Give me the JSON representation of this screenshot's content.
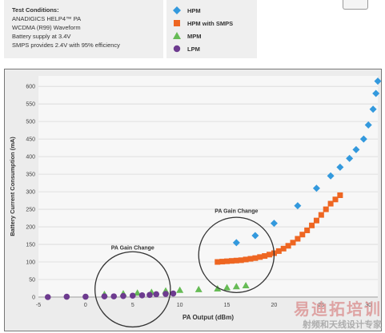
{
  "test_conditions": {
    "title": "Test Conditions:",
    "lines": [
      "ANADIGICS HELP4™ PA",
      "WCDMA (R99) Waveform",
      "Battery supply at 3.4V",
      "SMPS provides 2.4V with 95% efficiency"
    ]
  },
  "watermark": {
    "big": "易迪拓培训",
    "small": "射频和天线设计专家"
  },
  "chart_data": {
    "type": "scatter",
    "xlabel": "PA Output (dBm)",
    "ylabel": "Battery Current Consumption (mA)",
    "xlim": [
      -5,
      31
    ],
    "ylim": [
      0,
      630
    ],
    "x_ticks": [
      -5,
      0,
      5,
      10,
      15,
      20,
      25,
      30
    ],
    "y_ticks": [
      0,
      50,
      100,
      150,
      200,
      250,
      300,
      350,
      400,
      450,
      500,
      550,
      600
    ],
    "grid": "horizontal",
    "legend_position": "top",
    "series": [
      {
        "name": "HPM",
        "color": "#3399dd",
        "marker": "diamond",
        "points": [
          [
            16,
            155
          ],
          [
            18,
            175
          ],
          [
            20,
            210
          ],
          [
            22.5,
            260
          ],
          [
            24.5,
            310
          ],
          [
            26,
            345
          ],
          [
            27,
            370
          ],
          [
            28,
            395
          ],
          [
            28.7,
            420
          ],
          [
            29.5,
            450
          ],
          [
            30,
            490
          ],
          [
            30.5,
            535
          ],
          [
            30.8,
            580
          ],
          [
            31,
            615
          ]
        ]
      },
      {
        "name": "HPM with SMPS",
        "color": "#ee6622",
        "marker": "square",
        "points": [
          [
            14,
            100
          ],
          [
            14.5,
            101
          ],
          [
            15,
            102
          ],
          [
            15.5,
            103
          ],
          [
            16,
            104
          ],
          [
            16.5,
            105
          ],
          [
            17,
            107
          ],
          [
            17.5,
            109
          ],
          [
            18,
            111
          ],
          [
            18.5,
            114
          ],
          [
            19,
            117
          ],
          [
            19.5,
            121
          ],
          [
            20,
            125
          ],
          [
            20.5,
            131
          ],
          [
            21,
            138
          ],
          [
            21.5,
            146
          ],
          [
            22,
            155
          ],
          [
            22.5,
            166
          ],
          [
            23,
            178
          ],
          [
            23.5,
            190
          ],
          [
            24,
            204
          ],
          [
            24.5,
            218
          ],
          [
            25,
            234
          ],
          [
            25.5,
            250
          ],
          [
            26,
            266
          ],
          [
            26.5,
            278
          ],
          [
            27,
            290
          ]
        ]
      },
      {
        "name": "MPM",
        "color": "#66bb55",
        "marker": "triangle",
        "points": [
          [
            2,
            8
          ],
          [
            4,
            10
          ],
          [
            5.5,
            12
          ],
          [
            7,
            14
          ],
          [
            8.5,
            18
          ],
          [
            10,
            20
          ],
          [
            12,
            22
          ],
          [
            14,
            24
          ],
          [
            15,
            27
          ],
          [
            16,
            30
          ],
          [
            17,
            33
          ]
        ]
      },
      {
        "name": "LPM",
        "color": "#6d3b8f",
        "marker": "circle",
        "points": [
          [
            -4,
            0
          ],
          [
            -2,
            1
          ],
          [
            0,
            1
          ],
          [
            2,
            2
          ],
          [
            3,
            2
          ],
          [
            4,
            3
          ],
          [
            5,
            4
          ],
          [
            6,
            5
          ],
          [
            6.8,
            6
          ],
          [
            7.5,
            8
          ],
          [
            8.5,
            9
          ],
          [
            9.3,
            10
          ]
        ]
      }
    ],
    "annotations": [
      {
        "text": "PA Gain Change",
        "x": 5,
        "y": 22,
        "r_data_x": 4,
        "label_y": 135
      },
      {
        "text": "PA Gain Change",
        "x": 16,
        "y": 120,
        "r_data_x": 4,
        "label_y": 240
      }
    ]
  }
}
